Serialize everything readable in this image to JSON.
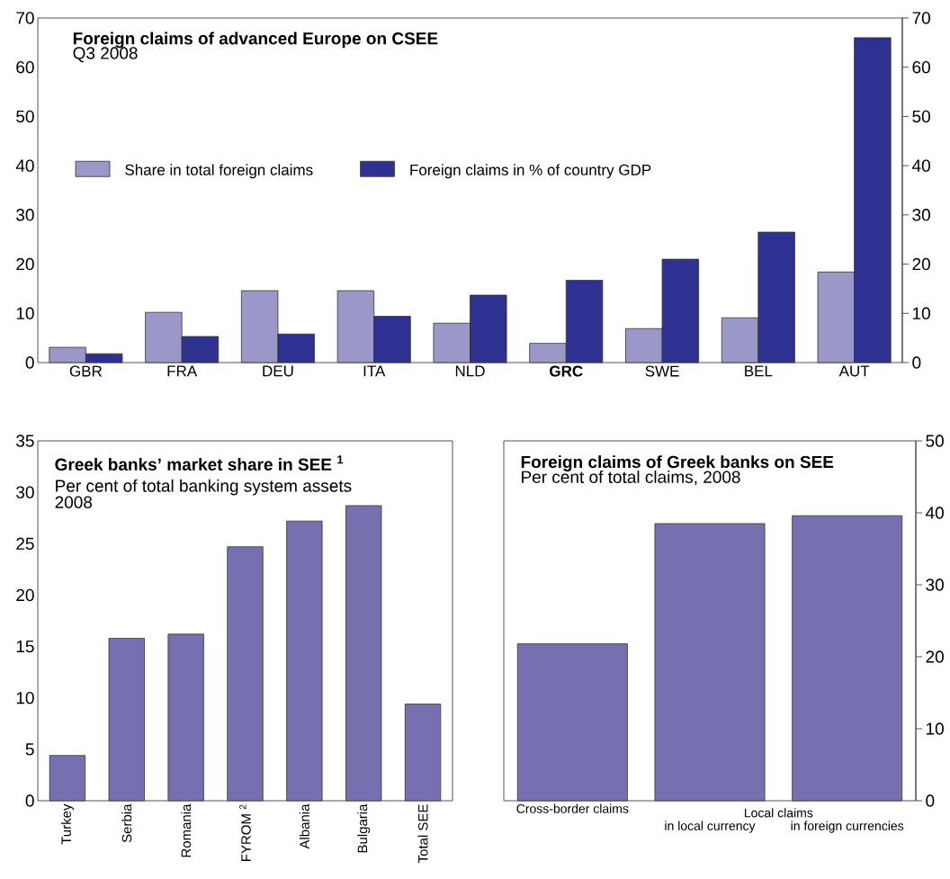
{
  "chart_data": [
    {
      "type": "bar",
      "title": "Foreign claims of advanced Europe on CSEE",
      "subtitle": "Q3 2008",
      "categories": [
        "GBR",
        "FRA",
        "DEU",
        "ITA",
        "NLD",
        "**GRC**",
        "SWE",
        "BEL",
        "AUT"
      ],
      "series": [
        {
          "name": "Share in total foreign claims",
          "color": "#9b97c8",
          "values": [
            3.1,
            10.2,
            14.6,
            14.6,
            8.0,
            3.9,
            6.9,
            9.1,
            18.4
          ]
        },
        {
          "name": "Foreign claims in % of country GDP",
          "color": "#2e3192",
          "values": [
            1.8,
            5.3,
            5.8,
            9.4,
            13.7,
            16.7,
            21.0,
            26.5,
            66.0
          ]
        }
      ],
      "ylim": [
        0,
        70
      ],
      "yticks": [
        0,
        10,
        20,
        30,
        40,
        50,
        60,
        70
      ],
      "y2lim": [
        0,
        70
      ],
      "y2ticks": [
        0,
        10,
        20,
        30,
        40,
        50,
        60,
        70
      ],
      "legend": "left"
    },
    {
      "type": "bar",
      "title": "Greek banks’ market share in SEE $^{1}$",
      "subtitle": "Per cent of total banking system assets 2008",
      "categories": [
        "Turkey",
        "Serbia",
        "Romania",
        "FYROM $^{2}$",
        "Albania",
        "Bulgaria",
        "Total SEE"
      ],
      "values": [
        4.4,
        15.8,
        16.2,
        24.7,
        27.2,
        28.7,
        9.4
      ],
      "color": "#7670b0",
      "ylim": [
        0,
        35
      ],
      "yticks": [
        0,
        5,
        10,
        15,
        20,
        25,
        30,
        35
      ]
    },
    {
      "type": "bar",
      "title": "Foreign claims of Greek banks on SEE",
      "subtitle": "Per cent of total claims, 2008",
      "categories": [
        "Cross-border claims",
        "in local currency",
        "in foreign currencies"
      ],
      "series": [
        {
          "color": "#7670b0",
          "axis": "y2",
          "values": [
            21.8,
            38.5,
            39.6
          ]
        }
      ],
      "y2lim": [
        0,
        50
      ],
      "y2ticks": [
        0,
        10,
        20,
        30,
        40,
        50
      ],
      "annotations": [
        "Local claims"
      ]
    }
  ]
}
